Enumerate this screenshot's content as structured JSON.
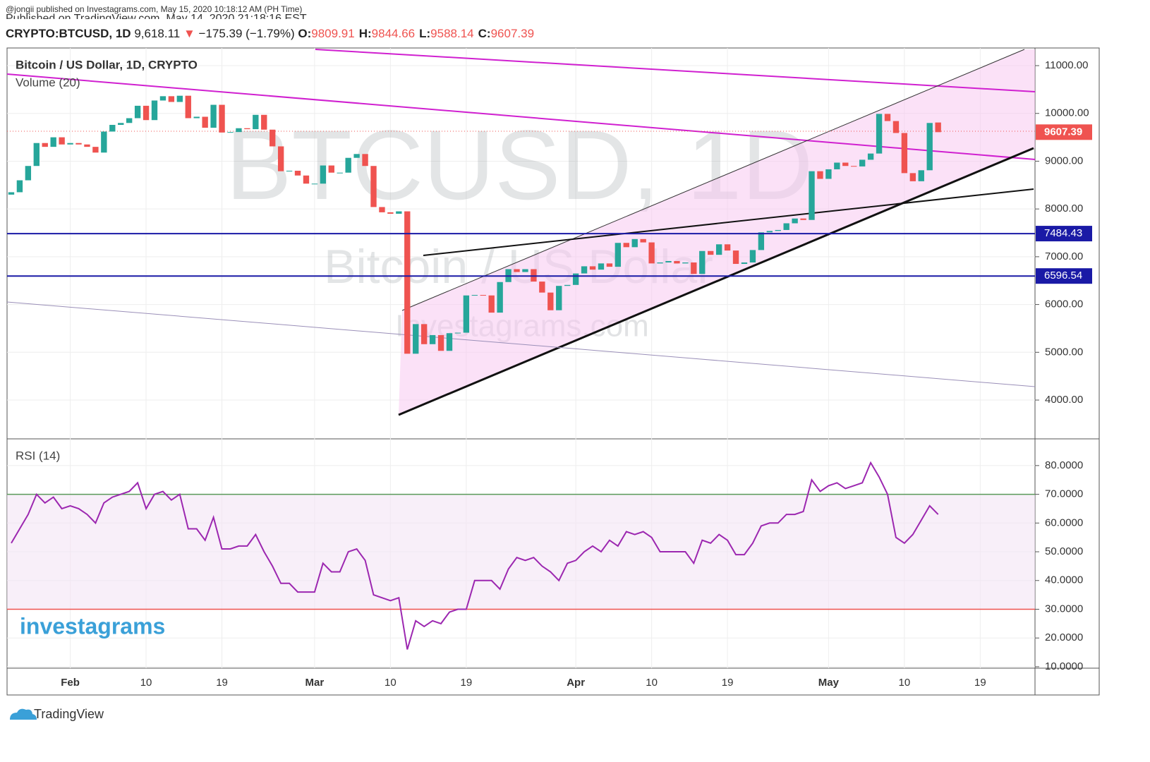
{
  "header": {
    "publisher": "@jongii published on Investagrams.com, May 15, 2020 10:18:12 AM (PH Time)",
    "published": "Published on TradingView.com, May 14, 2020 21:18:16 EST",
    "symbol": "CRYPTO:BTCUSD, 1D",
    "last": "9,618.11",
    "arrow": "▼",
    "change": "−175.39 (−1.79%)",
    "ohlc": [
      {
        "label": "O:",
        "value": 9809.91
      },
      {
        "label": "H:",
        "value": 9844.66
      },
      {
        "label": "L:",
        "value": 9588.14
      },
      {
        "label": "C:",
        "value": 9607.39
      }
    ],
    "brand": "TradingView",
    "logo": "investagrams"
  },
  "chart_data": {
    "type": "candlestick",
    "title": "Bitcoin / US Dollar, 1D, CRYPTO",
    "volume_label": "Volume (20)",
    "watermark": "BTCUSD, 1D",
    "watermark_name": "Bitcoin / US Dollar",
    "watermark_site": "Investagrams.com",
    "up_color": "#26a69a",
    "down_color": "#ef5350",
    "grid": true,
    "open": [
      8300,
      8350,
      8600,
      8900,
      9380,
      9300,
      9500,
      9350,
      9380,
      9350,
      9300,
      9180,
      9620,
      9760,
      9800,
      9900,
      10160,
      9860,
      10270,
      10360,
      10240,
      10370,
      9900,
      9930,
      9700,
      10180,
      9600,
      9610,
      9690,
      9670,
      9970,
      9660,
      9310,
      8790,
      8800,
      8700,
      8530,
      8530,
      8910,
      8760,
      8760,
      9070,
      9150,
      8900,
      8040,
      7930,
      7900,
      7950,
      4970,
      5590,
      5170,
      5360,
      5030,
      5400,
      5410,
      6190,
      6200,
      6190,
      5830,
      6470,
      6740,
      6680,
      6740,
      6480,
      6250,
      5880,
      6390,
      6410,
      6650,
      6800,
      6730,
      6860,
      6790,
      7290,
      7200,
      7370,
      7300,
      6860,
      6880,
      6910,
      6860,
      6880,
      6640,
      7120,
      7040,
      7260,
      7130,
      6850,
      6880,
      7140,
      7510,
      7540,
      7560,
      7700,
      7800,
      7770,
      8790,
      8630,
      8830,
      8970,
      8900,
      8890,
      9030,
      9160,
      9990,
      9840,
      9590,
      8750,
      8580,
      8810,
      9809.91
    ],
    "close": [
      8350,
      8600,
      8900,
      9380,
      9300,
      9500,
      9350,
      9380,
      9350,
      9300,
      9180,
      9620,
      9760,
      9800,
      9900,
      10160,
      9860,
      10270,
      10360,
      10240,
      10370,
      9900,
      9930,
      9700,
      10180,
      9600,
      9610,
      9690,
      9670,
      9970,
      9660,
      9310,
      8790,
      8800,
      8700,
      8530,
      8530,
      8910,
      8760,
      8760,
      9070,
      9150,
      8900,
      8040,
      7930,
      7900,
      7950,
      4970,
      5590,
      5170,
      5360,
      5030,
      5400,
      5410,
      6190,
      6200,
      6190,
      5830,
      6470,
      6740,
      6680,
      6740,
      6480,
      6250,
      5880,
      6390,
      6410,
      6650,
      6800,
      6730,
      6860,
      6790,
      7290,
      7200,
      7370,
      7300,
      6860,
      6880,
      6910,
      6860,
      6880,
      6640,
      7120,
      7040,
      7260,
      7130,
      6850,
      6880,
      7140,
      7510,
      7540,
      7560,
      7700,
      7800,
      7770,
      8790,
      8630,
      8830,
      8970,
      8900,
      8890,
      9030,
      9160,
      9990,
      9840,
      9590,
      8750,
      8580,
      8810,
      9800,
      9607.39
    ],
    "levels": [
      7484.43,
      6596.54
    ],
    "level_color": "#1a1aa6",
    "xlim": [
      -0.5,
      121.5
    ],
    "xticks": [
      {
        "value": 7,
        "label": "Feb"
      },
      {
        "value": 16,
        "label": "10"
      },
      {
        "value": 25,
        "label": "19"
      },
      {
        "value": 36,
        "label": "Mar"
      },
      {
        "value": 45,
        "label": "10"
      },
      {
        "value": 54,
        "label": "19"
      },
      {
        "value": 67,
        "label": "Apr"
      },
      {
        "value": 76,
        "label": "10"
      },
      {
        "value": 85,
        "label": "19"
      },
      {
        "value": 97,
        "label": "May"
      },
      {
        "value": 106,
        "label": "10"
      },
      {
        "value": 115,
        "label": "19"
      }
    ],
    "ylim": [
      3188,
      11340
    ],
    "yticks": [
      {
        "value": 4000,
        "label": "4000.00"
      },
      {
        "value": 5000,
        "label": "5000.00"
      },
      {
        "value": 6000,
        "label": "6000.00"
      },
      {
        "value": 7000,
        "label": "7000.00"
      },
      {
        "value": 8000,
        "label": "8000.00"
      },
      {
        "value": 9000,
        "label": "9000.00"
      },
      {
        "value": 10000,
        "label": "10000.00"
      },
      {
        "value": 11000,
        "label": "11000.00"
      }
    ],
    "rsi": {
      "title": "RSI (14)",
      "color": "#9c27b0",
      "values": [
        53,
        58,
        63,
        70,
        67,
        69,
        65,
        66,
        65,
        63,
        60,
        67,
        69,
        70,
        71,
        74,
        65,
        70,
        71,
        68,
        70,
        58,
        58,
        54,
        62,
        51,
        51,
        52,
        52,
        56,
        50,
        45,
        39,
        39,
        36,
        36,
        36,
        46,
        43,
        43,
        50,
        51,
        47,
        35,
        34,
        33,
        34,
        16,
        26,
        24,
        26,
        25,
        29,
        30,
        30,
        40,
        40,
        40,
        37,
        44,
        48,
        47,
        48,
        45,
        43,
        40,
        46,
        47,
        50,
        52,
        50,
        54,
        52,
        57,
        56,
        57,
        55,
        50,
        50,
        50,
        50,
        46,
        54,
        53,
        56,
        54,
        49,
        49,
        53,
        59,
        60,
        60,
        63,
        63,
        64,
        75,
        71,
        73,
        74,
        72,
        73,
        74,
        81,
        76,
        70,
        55,
        53,
        56,
        61,
        66,
        63
      ],
      "ylim": [
        9.5,
        88.8
      ],
      "upper": 70,
      "lower": 30,
      "yticks": [
        {
          "value": 10,
          "label": "10.0000"
        },
        {
          "value": 20,
          "label": "20.0000"
        },
        {
          "value": 30,
          "label": "30.0000"
        },
        {
          "value": 40,
          "label": "40.0000"
        },
        {
          "value": 50,
          "label": "50.0000"
        },
        {
          "value": 60,
          "label": "60.0000"
        },
        {
          "value": 70,
          "label": "70.0000"
        },
        {
          "value": 80,
          "label": "80.0000"
        }
      ]
    }
  }
}
